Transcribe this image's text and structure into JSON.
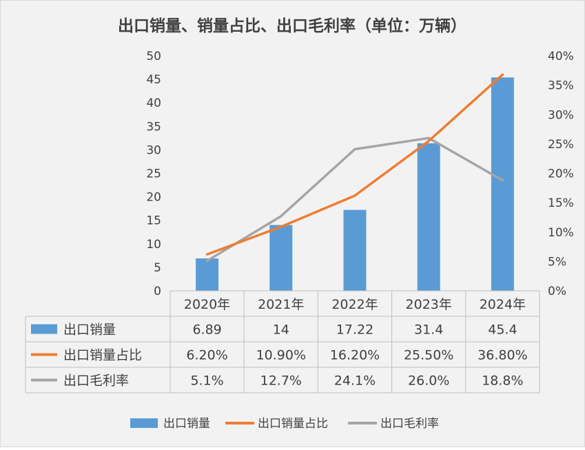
{
  "chart_data": {
    "type": "bar",
    "title": "出口销量、销量占比、出口毛利率（单位：万辆）",
    "categories": [
      "2020年",
      "2021年",
      "2022年",
      "2023年",
      "2024年"
    ],
    "y_left": {
      "range": [
        0,
        50
      ],
      "step": 5,
      "ticks": [
        "0",
        "5",
        "10",
        "15",
        "20",
        "25",
        "30",
        "35",
        "40",
        "45",
        "50"
      ]
    },
    "y_right": {
      "range": [
        0,
        40
      ],
      "step": 5,
      "ticks": [
        "0%",
        "5%",
        "10%",
        "15%",
        "20%",
        "25%",
        "30%",
        "35%",
        "40%"
      ]
    },
    "gridlines": false,
    "legend_position": "bottom",
    "series": [
      {
        "name": "出口销量",
        "type": "bar",
        "axis": "left",
        "color": "#5b9bd5",
        "values": [
          6.89,
          14,
          17.22,
          31.4,
          45.4
        ],
        "labels": [
          "6.89",
          "14",
          "17.22",
          "31.4",
          "45.4"
        ]
      },
      {
        "name": "出口销量占比",
        "type": "line",
        "axis": "right",
        "color": "#ed7d31",
        "values": [
          6.2,
          10.9,
          16.2,
          25.5,
          36.8
        ],
        "labels": [
          "6.20%",
          "10.90%",
          "16.20%",
          "25.50%",
          "36.80%"
        ]
      },
      {
        "name": "出口毛利率",
        "type": "line",
        "axis": "right",
        "color": "#a5a5a5",
        "values": [
          5.1,
          12.7,
          24.1,
          26.0,
          18.8
        ],
        "labels": [
          "5.1%",
          "12.7%",
          "24.1%",
          "26.0%",
          "18.8%"
        ]
      }
    ]
  }
}
